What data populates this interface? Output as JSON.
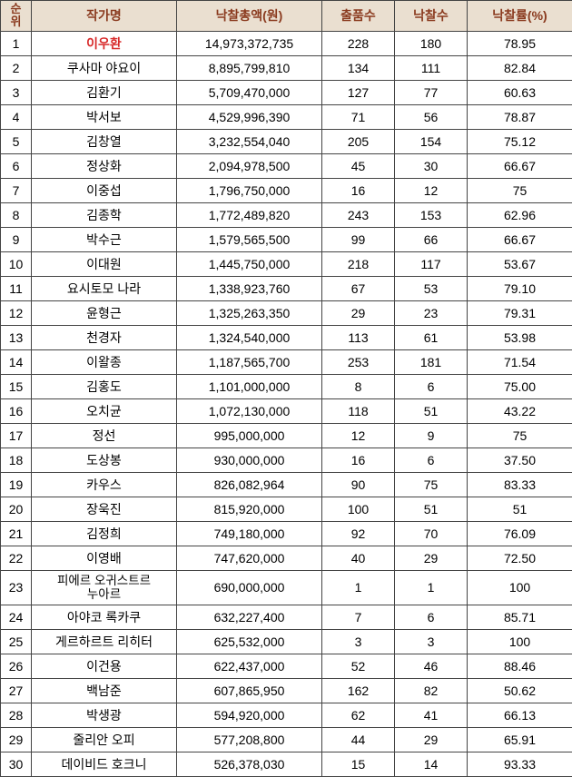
{
  "table": {
    "columns": {
      "rank": "순\n위",
      "artist": "작가명",
      "total": "낙찰총액(원)",
      "lots": "출품수",
      "sold": "낙찰수",
      "rate": "낙찰률(%)"
    },
    "header_bg": "#eadfd0",
    "header_color": "#8a3a1e",
    "border_color": "#444444",
    "highlight_color": "#d82a2a",
    "highlight_row_index": 0,
    "rows": [
      {
        "rank": "1",
        "artist": "이우환",
        "total": "14,973,372,735",
        "lots": "228",
        "sold": "180",
        "rate": "78.95"
      },
      {
        "rank": "2",
        "artist": "쿠사마 야요이",
        "total": "8,895,799,810",
        "lots": "134",
        "sold": "111",
        "rate": "82.84"
      },
      {
        "rank": "3",
        "artist": "김환기",
        "total": "5,709,470,000",
        "lots": "127",
        "sold": "77",
        "rate": "60.63"
      },
      {
        "rank": "4",
        "artist": "박서보",
        "total": "4,529,996,390",
        "lots": "71",
        "sold": "56",
        "rate": "78.87"
      },
      {
        "rank": "5",
        "artist": "김창열",
        "total": "3,232,554,040",
        "lots": "205",
        "sold": "154",
        "rate": "75.12"
      },
      {
        "rank": "6",
        "artist": "정상화",
        "total": "2,094,978,500",
        "lots": "45",
        "sold": "30",
        "rate": "66.67"
      },
      {
        "rank": "7",
        "artist": "이중섭",
        "total": "1,796,750,000",
        "lots": "16",
        "sold": "12",
        "rate": "75"
      },
      {
        "rank": "8",
        "artist": "김종학",
        "total": "1,772,489,820",
        "lots": "243",
        "sold": "153",
        "rate": "62.96"
      },
      {
        "rank": "9",
        "artist": "박수근",
        "total": "1,579,565,500",
        "lots": "99",
        "sold": "66",
        "rate": "66.67"
      },
      {
        "rank": "10",
        "artist": "이대원",
        "total": "1,445,750,000",
        "lots": "218",
        "sold": "117",
        "rate": "53.67"
      },
      {
        "rank": "11",
        "artist": "요시토모 나라",
        "total": "1,338,923,760",
        "lots": "67",
        "sold": "53",
        "rate": "79.10"
      },
      {
        "rank": "12",
        "artist": "윤형근",
        "total": "1,325,263,350",
        "lots": "29",
        "sold": "23",
        "rate": "79.31"
      },
      {
        "rank": "13",
        "artist": "천경자",
        "total": "1,324,540,000",
        "lots": "113",
        "sold": "61",
        "rate": "53.98"
      },
      {
        "rank": "14",
        "artist": "이왈종",
        "total": "1,187,565,700",
        "lots": "253",
        "sold": "181",
        "rate": "71.54"
      },
      {
        "rank": "15",
        "artist": "김홍도",
        "total": "1,101,000,000",
        "lots": "8",
        "sold": "6",
        "rate": "75.00"
      },
      {
        "rank": "16",
        "artist": "오치균",
        "total": "1,072,130,000",
        "lots": "118",
        "sold": "51",
        "rate": "43.22"
      },
      {
        "rank": "17",
        "artist": "정선",
        "total": "995,000,000",
        "lots": "12",
        "sold": "9",
        "rate": "75"
      },
      {
        "rank": "18",
        "artist": "도상봉",
        "total": "930,000,000",
        "lots": "16",
        "sold": "6",
        "rate": "37.50"
      },
      {
        "rank": "19",
        "artist": "카우스",
        "total": "826,082,964",
        "lots": "90",
        "sold": "75",
        "rate": "83.33"
      },
      {
        "rank": "20",
        "artist": "장욱진",
        "total": "815,920,000",
        "lots": "100",
        "sold": "51",
        "rate": "51"
      },
      {
        "rank": "21",
        "artist": "김정희",
        "total": "749,180,000",
        "lots": "92",
        "sold": "70",
        "rate": "76.09"
      },
      {
        "rank": "22",
        "artist": "이영배",
        "total": "747,620,000",
        "lots": "40",
        "sold": "29",
        "rate": "72.50"
      },
      {
        "rank": "23",
        "artist": "피에르 오귀스트르\n누아르",
        "total": "690,000,000",
        "lots": "1",
        "sold": "1",
        "rate": "100",
        "wrap": true
      },
      {
        "rank": "24",
        "artist": "아야코 록카쿠",
        "total": "632,227,400",
        "lots": "7",
        "sold": "6",
        "rate": "85.71"
      },
      {
        "rank": "25",
        "artist": "게르하르트 리히터",
        "total": "625,532,000",
        "lots": "3",
        "sold": "3",
        "rate": "100"
      },
      {
        "rank": "26",
        "artist": "이건용",
        "total": "622,437,000",
        "lots": "52",
        "sold": "46",
        "rate": "88.46"
      },
      {
        "rank": "27",
        "artist": "백남준",
        "total": "607,865,950",
        "lots": "162",
        "sold": "82",
        "rate": "50.62"
      },
      {
        "rank": "28",
        "artist": "박생광",
        "total": "594,920,000",
        "lots": "62",
        "sold": "41",
        "rate": "66.13"
      },
      {
        "rank": "29",
        "artist": "줄리안 오피",
        "total": "577,208,800",
        "lots": "44",
        "sold": "29",
        "rate": "65.91"
      },
      {
        "rank": "30",
        "artist": "데이비드 호크니",
        "total": "526,378,030",
        "lots": "15",
        "sold": "14",
        "rate": "93.33"
      }
    ]
  }
}
